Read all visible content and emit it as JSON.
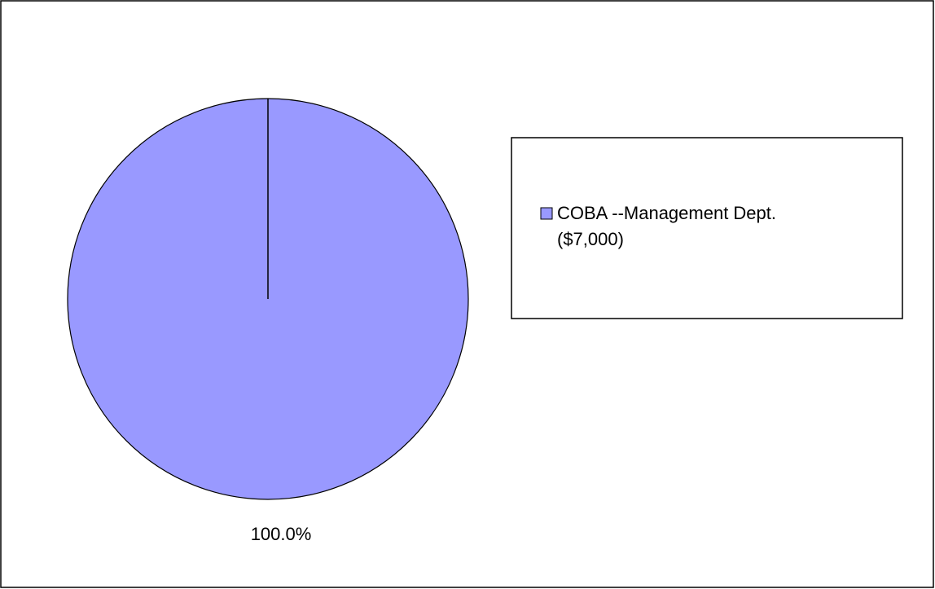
{
  "chart_data": {
    "type": "pie",
    "categories": [
      "COBA --Management Dept. ($7,000)"
    ],
    "values": [
      100
    ],
    "value_labels": [
      "100.0%"
    ],
    "colors": [
      "#9999ff"
    ],
    "legend": "right"
  }
}
